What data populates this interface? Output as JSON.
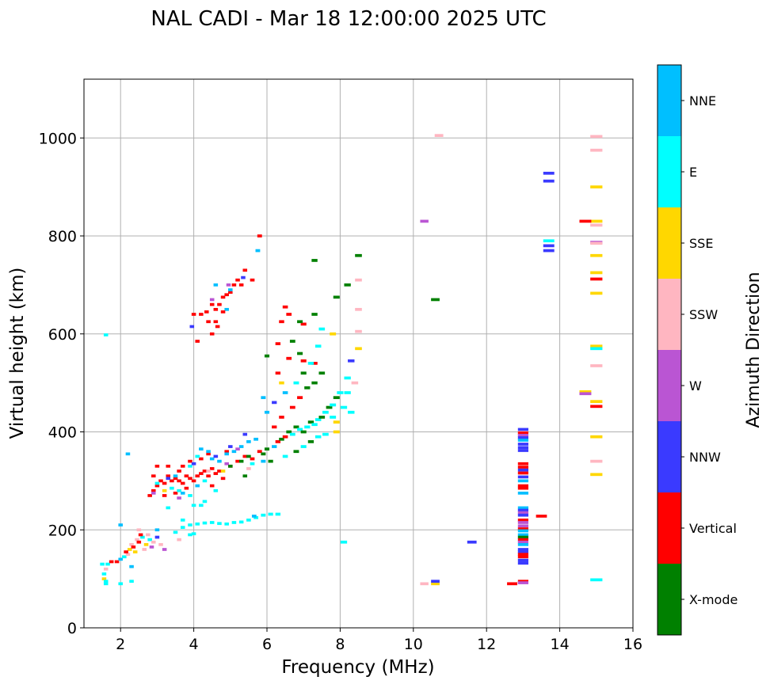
{
  "chart_data": {
    "type": "scatter",
    "title": "NAL CADI - Mar 18 12:00:00 2025 UTC",
    "xlabel": "Frequency (MHz)",
    "ylabel": "Virtual height (km)",
    "xlim": [
      1,
      16
    ],
    "ylim": [
      0,
      1120
    ],
    "xticks": [
      2,
      4,
      6,
      8,
      10,
      12,
      14,
      16
    ],
    "yticks": [
      0,
      200,
      400,
      600,
      800,
      1000
    ],
    "grid": true,
    "colorbar": {
      "title": "Azimuth Direction",
      "categories": [
        {
          "name": "X-mode",
          "color": "#008000"
        },
        {
          "name": "Vertical",
          "color": "#ff0000"
        },
        {
          "name": "NNW",
          "color": "#3a3aff"
        },
        {
          "name": "W",
          "color": "#ba55d3"
        },
        {
          "name": "SSW",
          "color": "#ffb6c1"
        },
        {
          "name": "SSE",
          "color": "#ffd700"
        },
        {
          "name": "E",
          "color": "#00ffff"
        },
        {
          "name": "NNE",
          "color": "#00bfff"
        }
      ]
    },
    "points_format": [
      "frequency_mhz",
      "height_km",
      "category_index"
    ],
    "points": [
      [
        1.55,
        100,
        5
      ],
      [
        1.6,
        95,
        6
      ],
      [
        1.55,
        110,
        6
      ],
      [
        1.6,
        120,
        4
      ],
      [
        1.65,
        130,
        6
      ],
      [
        1.6,
        90,
        6
      ],
      [
        1.75,
        135,
        1
      ],
      [
        1.9,
        135,
        1
      ],
      [
        2.0,
        140,
        7
      ],
      [
        2.1,
        145,
        6
      ],
      [
        2.2,
        150,
        4
      ],
      [
        2.25,
        160,
        5
      ],
      [
        2.3,
        170,
        4
      ],
      [
        2.35,
        165,
        1
      ],
      [
        2.4,
        155,
        5
      ],
      [
        2.45,
        180,
        4
      ],
      [
        2.5,
        200,
        4
      ],
      [
        2.5,
        175,
        1
      ],
      [
        2.6,
        185,
        6
      ],
      [
        2.65,
        160,
        4
      ],
      [
        2.7,
        170,
        5
      ],
      [
        2.75,
        190,
        4
      ],
      [
        2.8,
        180,
        6
      ],
      [
        2.85,
        165,
        3
      ],
      [
        2.9,
        175,
        4
      ],
      [
        3.0,
        185,
        2
      ],
      [
        3.1,
        170,
        4
      ],
      [
        3.2,
        160,
        3
      ],
      [
        2.3,
        125,
        7
      ],
      [
        2.3,
        95,
        6
      ],
      [
        1.5,
        130,
        6
      ],
      [
        2.55,
        190,
        1
      ],
      [
        3.0,
        200,
        7
      ],
      [
        2.15,
        155,
        1
      ],
      [
        3.5,
        195,
        6
      ],
      [
        3.7,
        205,
        6
      ],
      [
        3.9,
        210,
        6
      ],
      [
        4.1,
        212,
        6
      ],
      [
        4.3,
        214,
        6
      ],
      [
        4.5,
        215,
        6
      ],
      [
        4.7,
        213,
        6
      ],
      [
        4.9,
        212,
        6
      ],
      [
        5.1,
        215,
        6
      ],
      [
        5.3,
        216,
        6
      ],
      [
        5.5,
        220,
        6
      ],
      [
        5.7,
        225,
        6
      ],
      [
        5.9,
        230,
        6
      ],
      [
        6.1,
        232,
        6
      ],
      [
        6.3,
        232,
        6
      ],
      [
        3.9,
        190,
        6
      ],
      [
        4.0,
        192,
        6
      ],
      [
        3.7,
        220,
        6
      ],
      [
        3.3,
        245,
        6
      ],
      [
        5.65,
        228,
        7
      ],
      [
        4.2,
        250,
        6
      ],
      [
        3.6,
        180,
        4
      ],
      [
        2.8,
        270,
        1
      ],
      [
        2.9,
        280,
        1
      ],
      [
        3.0,
        290,
        1
      ],
      [
        3.1,
        300,
        1
      ],
      [
        3.2,
        295,
        1
      ],
      [
        3.3,
        310,
        1
      ],
      [
        3.4,
        300,
        1
      ],
      [
        3.5,
        305,
        1
      ],
      [
        3.6,
        300,
        1
      ],
      [
        3.7,
        295,
        1
      ],
      [
        3.8,
        310,
        1
      ],
      [
        3.9,
        305,
        1
      ],
      [
        4.0,
        300,
        1
      ],
      [
        4.1,
        310,
        1
      ],
      [
        4.2,
        315,
        1
      ],
      [
        4.3,
        320,
        1
      ],
      [
        4.4,
        310,
        1
      ],
      [
        4.5,
        325,
        1
      ],
      [
        4.6,
        315,
        1
      ],
      [
        4.7,
        320,
        1
      ],
      [
        3.0,
        330,
        1
      ],
      [
        3.3,
        330,
        1
      ],
      [
        3.6,
        320,
        1
      ],
      [
        3.8,
        285,
        1
      ],
      [
        3.5,
        275,
        1
      ],
      [
        4.5,
        290,
        1
      ],
      [
        4.8,
        305,
        1
      ],
      [
        5.0,
        330,
        1
      ],
      [
        5.2,
        340,
        1
      ],
      [
        5.4,
        350,
        1
      ],
      [
        5.6,
        345,
        1
      ],
      [
        5.8,
        360,
        1
      ],
      [
        3.2,
        270,
        1
      ],
      [
        3.9,
        340,
        1
      ],
      [
        4.2,
        345,
        1
      ],
      [
        2.9,
        310,
        1
      ],
      [
        3.7,
        330,
        1
      ],
      [
        4.9,
        360,
        1
      ],
      [
        4.4,
        355,
        1
      ],
      [
        3.4,
        285,
        6
      ],
      [
        3.6,
        280,
        6
      ],
      [
        3.7,
        275,
        7
      ],
      [
        3.9,
        270,
        6
      ],
      [
        4.1,
        290,
        7
      ],
      [
        4.3,
        300,
        6
      ],
      [
        4.5,
        345,
        7
      ],
      [
        4.7,
        340,
        7
      ],
      [
        4.9,
        355,
        7
      ],
      [
        5.1,
        360,
        7
      ],
      [
        5.3,
        370,
        7
      ],
      [
        5.5,
        380,
        7
      ],
      [
        5.7,
        385,
        7
      ],
      [
        4.2,
        365,
        7
      ],
      [
        4.4,
        360,
        7
      ],
      [
        3.5,
        310,
        7
      ],
      [
        3.9,
        330,
        6
      ],
      [
        4.1,
        350,
        6
      ],
      [
        4.6,
        280,
        6
      ],
      [
        3.0,
        295,
        6
      ],
      [
        4.0,
        250,
        6
      ],
      [
        5.6,
        335,
        6
      ],
      [
        5.9,
        340,
        7
      ],
      [
        4.3,
        258,
        6
      ],
      [
        3.3,
        305,
        2
      ],
      [
        4.0,
        335,
        2
      ],
      [
        4.6,
        350,
        2
      ],
      [
        5.0,
        370,
        2
      ],
      [
        5.4,
        395,
        2
      ],
      [
        5.2,
        365,
        3
      ],
      [
        4.9,
        335,
        3
      ],
      [
        3.6,
        265,
        3
      ],
      [
        4.4,
        320,
        4
      ],
      [
        3.2,
        280,
        5
      ],
      [
        4.8,
        320,
        5
      ],
      [
        5.5,
        325,
        4
      ],
      [
        2.9,
        275,
        3
      ],
      [
        5.0,
        330,
        0
      ],
      [
        5.3,
        340,
        0
      ],
      [
        5.5,
        350,
        0
      ],
      [
        5.9,
        355,
        0
      ],
      [
        6.1,
        340,
        0
      ],
      [
        5.4,
        310,
        0
      ],
      [
        6.0,
        365,
        0
      ],
      [
        6.2,
        370,
        7
      ],
      [
        6.3,
        380,
        1
      ],
      [
        6.4,
        385,
        0
      ],
      [
        6.5,
        390,
        1
      ],
      [
        6.6,
        400,
        0
      ],
      [
        6.7,
        395,
        6
      ],
      [
        6.8,
        410,
        0
      ],
      [
        6.9,
        405,
        6
      ],
      [
        7.0,
        400,
        0
      ],
      [
        7.1,
        410,
        6
      ],
      [
        7.2,
        420,
        0
      ],
      [
        7.3,
        415,
        6
      ],
      [
        7.4,
        425,
        6
      ],
      [
        7.5,
        430,
        0
      ],
      [
        7.6,
        440,
        6
      ],
      [
        7.7,
        450,
        0
      ],
      [
        7.8,
        455,
        6
      ],
      [
        7.9,
        470,
        0
      ],
      [
        8.0,
        480,
        6
      ],
      [
        8.1,
        450,
        6
      ],
      [
        7.9,
        420,
        5
      ],
      [
        7.9,
        400,
        5
      ],
      [
        6.5,
        350,
        6
      ],
      [
        6.8,
        360,
        0
      ],
      [
        7.0,
        370,
        6
      ],
      [
        7.2,
        380,
        0
      ],
      [
        7.4,
        390,
        6
      ],
      [
        7.6,
        395,
        6
      ],
      [
        6.4,
        430,
        1
      ],
      [
        6.7,
        450,
        1
      ],
      [
        6.9,
        470,
        1
      ],
      [
        7.1,
        490,
        0
      ],
      [
        7.3,
        500,
        0
      ],
      [
        6.2,
        460,
        2
      ],
      [
        6.5,
        480,
        7
      ],
      [
        6.8,
        500,
        6
      ],
      [
        7.0,
        520,
        0
      ],
      [
        7.5,
        520,
        0
      ],
      [
        7.3,
        540,
        1
      ],
      [
        7.0,
        545,
        1
      ],
      [
        6.9,
        560,
        0
      ],
      [
        6.6,
        550,
        1
      ],
      [
        6.3,
        520,
        1
      ],
      [
        6.2,
        410,
        1
      ],
      [
        6.0,
        440,
        7
      ],
      [
        5.9,
        470,
        7
      ],
      [
        6.4,
        500,
        5
      ],
      [
        7.8,
        430,
        6
      ],
      [
        8.2,
        510,
        6
      ],
      [
        8.3,
        440,
        6
      ],
      [
        7.2,
        540,
        6
      ],
      [
        7.4,
        575,
        6
      ],
      [
        7.5,
        610,
        6
      ],
      [
        7.0,
        620,
        1
      ],
      [
        6.6,
        640,
        1
      ],
      [
        6.4,
        625,
        1
      ],
      [
        7.8,
        600,
        5
      ],
      [
        8.4,
        500,
        4
      ],
      [
        8.3,
        545,
        2
      ],
      [
        8.2,
        480,
        6
      ],
      [
        8.5,
        570,
        5
      ],
      [
        8.5,
        605,
        4
      ],
      [
        8.5,
        650,
        4
      ],
      [
        8.5,
        710,
        4
      ],
      [
        8.2,
        700,
        0
      ],
      [
        8.5,
        760,
        0
      ],
      [
        7.9,
        675,
        0
      ],
      [
        7.3,
        750,
        0
      ],
      [
        7.3,
        640,
        0
      ],
      [
        6.9,
        625,
        0
      ],
      [
        6.7,
        585,
        0
      ],
      [
        6.0,
        555,
        0
      ],
      [
        6.3,
        580,
        1
      ],
      [
        6.5,
        655,
        1
      ],
      [
        3.95,
        615,
        2
      ],
      [
        4.0,
        640,
        1
      ],
      [
        4.1,
        585,
        1
      ],
      [
        4.2,
        640,
        1
      ],
      [
        4.35,
        645,
        1
      ],
      [
        4.5,
        660,
        1
      ],
      [
        4.6,
        650,
        1
      ],
      [
        4.7,
        660,
        1
      ],
      [
        4.6,
        625,
        1
      ],
      [
        4.65,
        615,
        1
      ],
      [
        4.4,
        625,
        1
      ],
      [
        4.5,
        600,
        1
      ],
      [
        4.8,
        675,
        1
      ],
      [
        4.9,
        680,
        1
      ],
      [
        4.95,
        700,
        3
      ],
      [
        5.0,
        685,
        1
      ],
      [
        5.1,
        700,
        1
      ],
      [
        5.2,
        710,
        1
      ],
      [
        5.35,
        715,
        2
      ],
      [
        5.4,
        730,
        1
      ],
      [
        5.6,
        710,
        1
      ],
      [
        5.3,
        700,
        1
      ],
      [
        5.75,
        770,
        7
      ],
      [
        5.8,
        800,
        1
      ],
      [
        4.6,
        700,
        7
      ],
      [
        4.9,
        650,
        7
      ],
      [
        5.0,
        690,
        7
      ],
      [
        4.5,
        670,
        3
      ],
      [
        4.8,
        645,
        1
      ],
      [
        1.6,
        598,
        6
      ],
      [
        2.0,
        210,
        7
      ],
      [
        2.2,
        355,
        7
      ],
      [
        2.0,
        90,
        6
      ],
      [
        8.1,
        175,
        6
      ],
      [
        10.3,
        90,
        4
      ],
      [
        10.6,
        90,
        5
      ],
      [
        10.6,
        95,
        2
      ],
      [
        10.3,
        830,
        3
      ],
      [
        10.6,
        670,
        0
      ],
      [
        10.7,
        1005,
        4
      ],
      [
        11.6,
        175,
        2
      ],
      [
        12.7,
        90,
        1
      ],
      [
        13.5,
        228,
        1
      ],
      [
        13,
        405,
        2
      ],
      [
        13,
        398,
        1
      ],
      [
        13,
        393,
        3
      ],
      [
        13,
        388,
        2
      ],
      [
        13,
        383,
        7
      ],
      [
        13,
        375,
        2
      ],
      [
        13,
        368,
        2
      ],
      [
        13,
        362,
        2
      ],
      [
        13,
        335,
        1
      ],
      [
        13,
        328,
        1
      ],
      [
        13,
        322,
        2
      ],
      [
        13,
        316,
        1
      ],
      [
        13,
        308,
        2
      ],
      [
        13,
        300,
        7
      ],
      [
        13,
        290,
        1
      ],
      [
        13,
        285,
        1
      ],
      [
        13,
        275,
        7
      ],
      [
        13,
        245,
        7
      ],
      [
        13,
        240,
        2
      ],
      [
        13,
        235,
        3
      ],
      [
        13,
        230,
        2
      ],
      [
        13,
        220,
        1
      ],
      [
        13,
        215,
        3
      ],
      [
        13,
        208,
        3
      ],
      [
        13,
        202,
        1
      ],
      [
        13,
        198,
        7
      ],
      [
        13,
        190,
        7
      ],
      [
        13,
        185,
        0
      ],
      [
        13,
        180,
        1
      ],
      [
        13,
        175,
        3
      ],
      [
        13,
        170,
        7
      ],
      [
        13,
        160,
        2
      ],
      [
        13,
        155,
        2
      ],
      [
        13,
        150,
        1
      ],
      [
        13,
        145,
        1
      ],
      [
        13,
        138,
        2
      ],
      [
        13,
        132,
        2
      ],
      [
        13,
        95,
        1
      ],
      [
        13,
        92,
        3
      ],
      [
        13.7,
        928,
        2
      ],
      [
        13.7,
        912,
        2
      ],
      [
        13.7,
        790,
        6
      ],
      [
        13.7,
        780,
        2
      ],
      [
        13.7,
        770,
        2
      ],
      [
        15,
        1003,
        4
      ],
      [
        15,
        975,
        4
      ],
      [
        15,
        900,
        5
      ],
      [
        15,
        830,
        5
      ],
      [
        14.7,
        830,
        1
      ],
      [
        15,
        822,
        4
      ],
      [
        15,
        787,
        3
      ],
      [
        15,
        785,
        4
      ],
      [
        15,
        760,
        5
      ],
      [
        15,
        725,
        5
      ],
      [
        15,
        712,
        1
      ],
      [
        15,
        683,
        5
      ],
      [
        15,
        575,
        5
      ],
      [
        15,
        570,
        6
      ],
      [
        15,
        535,
        4
      ],
      [
        14.7,
        482,
        5
      ],
      [
        14.7,
        478,
        3
      ],
      [
        15,
        462,
        5
      ],
      [
        15,
        452,
        1
      ],
      [
        15,
        390,
        5
      ],
      [
        15,
        340,
        4
      ],
      [
        15,
        313,
        5
      ],
      [
        15,
        98,
        6
      ]
    ]
  }
}
